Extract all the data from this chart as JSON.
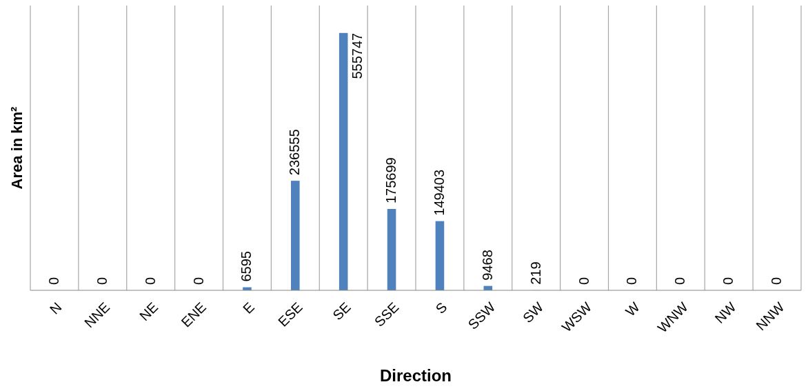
{
  "chart_data": {
    "type": "bar",
    "xlabel": "Direction",
    "ylabel": "Area in km²",
    "categories": [
      "N",
      "NNE",
      "NE",
      "ENE",
      "E",
      "ESE",
      "SE",
      "SSE",
      "S",
      "SSW",
      "SW",
      "WSW",
      "W",
      "WNW",
      "NW",
      "NNW"
    ],
    "values": [
      0,
      0,
      0,
      0,
      6595,
      236555,
      555747,
      175699,
      149403,
      9468,
      219,
      0,
      0,
      0,
      0,
      0
    ],
    "color": "#4f81bd",
    "ylim": [
      0,
      615000
    ],
    "grid": "x",
    "data_labels": true,
    "tick_labels": "x"
  }
}
